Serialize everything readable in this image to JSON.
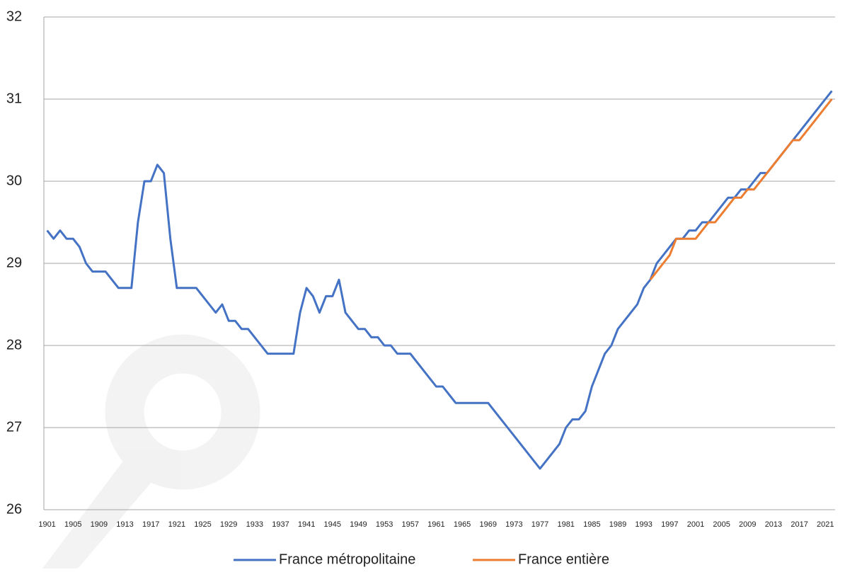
{
  "chart_data": {
    "type": "line",
    "x": [
      1901,
      1902,
      1903,
      1904,
      1905,
      1906,
      1907,
      1908,
      1909,
      1910,
      1911,
      1912,
      1913,
      1914,
      1915,
      1916,
      1917,
      1918,
      1919,
      1920,
      1921,
      1922,
      1923,
      1924,
      1925,
      1926,
      1927,
      1928,
      1929,
      1930,
      1931,
      1932,
      1933,
      1934,
      1935,
      1936,
      1937,
      1938,
      1939,
      1940,
      1941,
      1942,
      1943,
      1944,
      1945,
      1946,
      1947,
      1948,
      1949,
      1950,
      1951,
      1952,
      1953,
      1954,
      1955,
      1956,
      1957,
      1958,
      1959,
      1960,
      1961,
      1962,
      1963,
      1964,
      1965,
      1966,
      1967,
      1968,
      1969,
      1970,
      1971,
      1972,
      1973,
      1974,
      1975,
      1976,
      1977,
      1978,
      1979,
      1980,
      1981,
      1982,
      1983,
      1984,
      1985,
      1986,
      1987,
      1988,
      1989,
      1990,
      1991,
      1992,
      1993,
      1994,
      1995,
      1996,
      1997,
      1998,
      1999,
      2000,
      2001,
      2002,
      2003,
      2004,
      2005,
      2006,
      2007,
      2008,
      2009,
      2010,
      2011,
      2012,
      2013,
      2014,
      2015,
      2016,
      2017,
      2018,
      2019,
      2020,
      2021,
      2022
    ],
    "series": [
      {
        "name": "France métropolitaine",
        "color": "#4472c4",
        "values": [
          29.4,
          29.3,
          29.4,
          29.3,
          29.3,
          29.2,
          29.0,
          28.9,
          28.9,
          28.9,
          28.8,
          28.7,
          28.7,
          28.7,
          29.5,
          30.0,
          30.0,
          30.2,
          30.1,
          29.3,
          28.7,
          28.7,
          28.7,
          28.7,
          28.6,
          28.5,
          28.4,
          28.5,
          28.3,
          28.3,
          28.2,
          28.2,
          28.1,
          28.0,
          27.9,
          27.9,
          27.9,
          27.9,
          27.9,
          28.4,
          28.7,
          28.6,
          28.4,
          28.6,
          28.6,
          28.8,
          28.4,
          28.3,
          28.2,
          28.2,
          28.1,
          28.1,
          28.0,
          28.0,
          27.9,
          27.9,
          27.9,
          27.8,
          27.7,
          27.6,
          27.5,
          27.5,
          27.4,
          27.3,
          27.3,
          27.3,
          27.3,
          27.3,
          27.3,
          27.2,
          27.1,
          27.0,
          26.9,
          26.8,
          26.7,
          26.6,
          26.5,
          26.6,
          26.7,
          26.8,
          27.0,
          27.1,
          27.1,
          27.2,
          27.5,
          27.7,
          27.9,
          28.0,
          28.2,
          28.3,
          28.4,
          28.5,
          28.7,
          28.8,
          29.0,
          29.1,
          29.2,
          29.3,
          29.3,
          29.4,
          29.4,
          29.5,
          29.5,
          29.6,
          29.7,
          29.8,
          29.8,
          29.9,
          29.9,
          30.0,
          30.1,
          30.1,
          30.2,
          30.3,
          30.4,
          30.5,
          30.6,
          30.7,
          30.8,
          30.9,
          31.0,
          31.1
        ]
      },
      {
        "name": "France entière",
        "color": "#ed7d31",
        "values": [
          null,
          null,
          null,
          null,
          null,
          null,
          null,
          null,
          null,
          null,
          null,
          null,
          null,
          null,
          null,
          null,
          null,
          null,
          null,
          null,
          null,
          null,
          null,
          null,
          null,
          null,
          null,
          null,
          null,
          null,
          null,
          null,
          null,
          null,
          null,
          null,
          null,
          null,
          null,
          null,
          null,
          null,
          null,
          null,
          null,
          null,
          null,
          null,
          null,
          null,
          null,
          null,
          null,
          null,
          null,
          null,
          null,
          null,
          null,
          null,
          null,
          null,
          null,
          null,
          null,
          null,
          null,
          null,
          null,
          null,
          null,
          null,
          null,
          null,
          null,
          null,
          null,
          null,
          null,
          null,
          null,
          null,
          null,
          null,
          null,
          null,
          null,
          null,
          null,
          null,
          null,
          null,
          null,
          28.8,
          28.9,
          29.0,
          29.1,
          29.3,
          29.3,
          29.3,
          29.3,
          29.4,
          29.5,
          29.5,
          29.6,
          29.7,
          29.8,
          29.8,
          29.9,
          29.9,
          30.0,
          30.1,
          30.2,
          30.3,
          30.4,
          30.5,
          30.5,
          30.6,
          30.7,
          30.8,
          30.9,
          31.0
        ]
      }
    ],
    "xlim": [
      1900.5,
      2022.5
    ],
    "xticks": [
      1901,
      1905,
      1909,
      1913,
      1917,
      1921,
      1925,
      1929,
      1933,
      1937,
      1941,
      1945,
      1949,
      1953,
      1957,
      1961,
      1965,
      1969,
      1973,
      1977,
      1981,
      1985,
      1989,
      1993,
      1997,
      2001,
      2005,
      2009,
      2013,
      2017,
      2021
    ],
    "ylim": [
      26,
      32
    ],
    "yticks": [
      26,
      27,
      28,
      29,
      30,
      31,
      32
    ],
    "grid": true,
    "legend": "bottom"
  }
}
